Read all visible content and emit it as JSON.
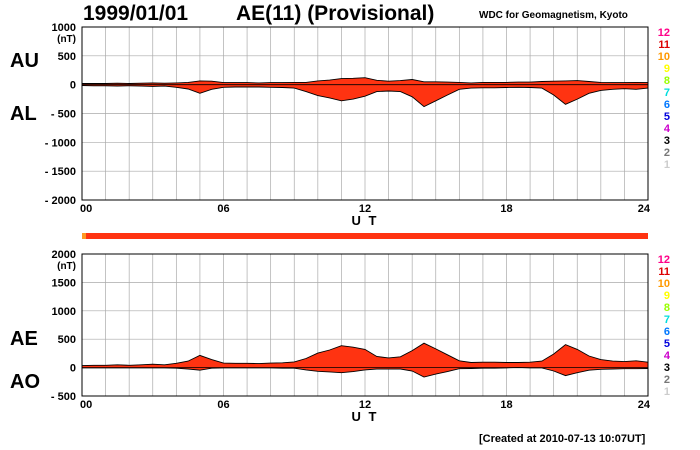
{
  "header": {
    "date": "1999/01/01",
    "title": "AE(11) (Provisional)",
    "org": "WDC for Geomagnetism, Kyoto",
    "created": "[Created at 2010-07-13 10:07UT]"
  },
  "colors": {
    "fill": "#ff3311",
    "outline": "#000000",
    "grid": "#aaaaaa",
    "bar": "#ff3311",
    "bar_start": "#ff9922"
  },
  "station_legend": [
    {
      "label": "12",
      "color": "#ff0088"
    },
    {
      "label": "11",
      "color": "#dd0000"
    },
    {
      "label": "10",
      "color": "#ff9900"
    },
    {
      "label": "9",
      "color": "#ffff00"
    },
    {
      "label": "8",
      "color": "#99ff00"
    },
    {
      "label": "7",
      "color": "#00dddd"
    },
    {
      "label": "6",
      "color": "#0077ff"
    },
    {
      "label": "5",
      "color": "#0000dd"
    },
    {
      "label": "4",
      "color": "#cc00cc"
    },
    {
      "label": "3",
      "color": "#000000"
    },
    {
      "label": "2",
      "color": "#777777"
    },
    {
      "label": "1",
      "color": "#cccccc"
    }
  ],
  "chart_data": [
    {
      "type": "area",
      "panel": "AU/AL",
      "labels_upper": "AU",
      "labels_lower": "AL",
      "unit": "(nT)",
      "xlabel": "U T",
      "xlim": [
        0,
        24
      ],
      "ylim": [
        -2000,
        1000
      ],
      "xticks": [
        "00",
        "06",
        "12",
        "18",
        "24"
      ],
      "yticks": [
        "1000",
        "500",
        "0",
        "- 500",
        "- 1000",
        "- 1500",
        "- 2000"
      ],
      "grid": true,
      "x": [
        0,
        0.5,
        1,
        1.5,
        2,
        2.5,
        3,
        3.5,
        4,
        4.5,
        5,
        5.5,
        6,
        6.5,
        7,
        7.5,
        8,
        8.5,
        9,
        9.5,
        10,
        10.5,
        11,
        11.5,
        12,
        12.5,
        13,
        13.5,
        14,
        14.5,
        15,
        15.5,
        16,
        16.5,
        17,
        17.5,
        18,
        18.5,
        19,
        19.5,
        20,
        20.5,
        21,
        21.5,
        22,
        22.5,
        23,
        23.5,
        24
      ],
      "series": [
        {
          "name": "AU",
          "values": [
            20,
            20,
            20,
            25,
            20,
            25,
            30,
            25,
            30,
            40,
            65,
            60,
            35,
            35,
            35,
            30,
            35,
            35,
            40,
            40,
            65,
            80,
            105,
            110,
            120,
            75,
            60,
            70,
            90,
            50,
            50,
            45,
            40,
            30,
            40,
            40,
            40,
            45,
            45,
            55,
            60,
            65,
            70,
            55,
            40,
            35,
            35,
            40,
            35
          ]
        },
        {
          "name": "AL",
          "values": [
            -15,
            -20,
            -20,
            -25,
            -20,
            -25,
            -30,
            -25,
            -45,
            -75,
            -150,
            -80,
            -45,
            -40,
            -40,
            -40,
            -45,
            -50,
            -60,
            -120,
            -190,
            -230,
            -280,
            -250,
            -200,
            -120,
            -110,
            -120,
            -210,
            -380,
            -280,
            -180,
            -80,
            -60,
            -55,
            -55,
            -50,
            -45,
            -50,
            -60,
            -180,
            -340,
            -250,
            -150,
            -100,
            -80,
            -70,
            -80,
            -60
          ]
        }
      ]
    },
    {
      "type": "area",
      "panel": "AE/AO",
      "labels_upper": "AE",
      "labels_lower": "AO",
      "unit": "(nT)",
      "xlabel": "U T",
      "xlim": [
        0,
        24
      ],
      "ylim": [
        -500,
        2000
      ],
      "xticks": [
        "00",
        "06",
        "12",
        "18",
        "24"
      ],
      "yticks": [
        "2000",
        "1500",
        "1000",
        "500",
        "0",
        "- 500"
      ],
      "grid": true,
      "x": [
        0,
        0.5,
        1,
        1.5,
        2,
        2.5,
        3,
        3.5,
        4,
        4.5,
        5,
        5.5,
        6,
        6.5,
        7,
        7.5,
        8,
        8.5,
        9,
        9.5,
        10,
        10.5,
        11,
        11.5,
        12,
        12.5,
        13,
        13.5,
        14,
        14.5,
        15,
        15.5,
        16,
        16.5,
        17,
        17.5,
        18,
        18.5,
        19,
        19.5,
        20,
        20.5,
        21,
        21.5,
        22,
        22.5,
        23,
        23.5,
        24
      ],
      "series": [
        {
          "name": "AE",
          "values": [
            35,
            40,
            40,
            50,
            40,
            50,
            60,
            50,
            75,
            115,
            215,
            140,
            80,
            75,
            75,
            70,
            80,
            85,
            100,
            160,
            255,
            310,
            385,
            360,
            320,
            195,
            170,
            190,
            300,
            430,
            330,
            225,
            120,
            90,
            95,
            95,
            90,
            90,
            95,
            115,
            240,
            405,
            320,
            205,
            140,
            115,
            105,
            120,
            95
          ]
        },
        {
          "name": "AO",
          "values": [
            -5,
            -5,
            -5,
            -5,
            -5,
            -5,
            -5,
            -5,
            -10,
            -25,
            -45,
            -10,
            -5,
            -5,
            -5,
            -5,
            -5,
            -10,
            -10,
            -40,
            -65,
            -75,
            -90,
            -70,
            -40,
            -25,
            -25,
            -25,
            -60,
            -165,
            -115,
            -70,
            -20,
            -15,
            -10,
            -10,
            -5,
            0,
            -5,
            -5,
            -60,
            -140,
            -90,
            -45,
            -30,
            -25,
            -20,
            -20,
            -15
          ]
        }
      ]
    }
  ]
}
